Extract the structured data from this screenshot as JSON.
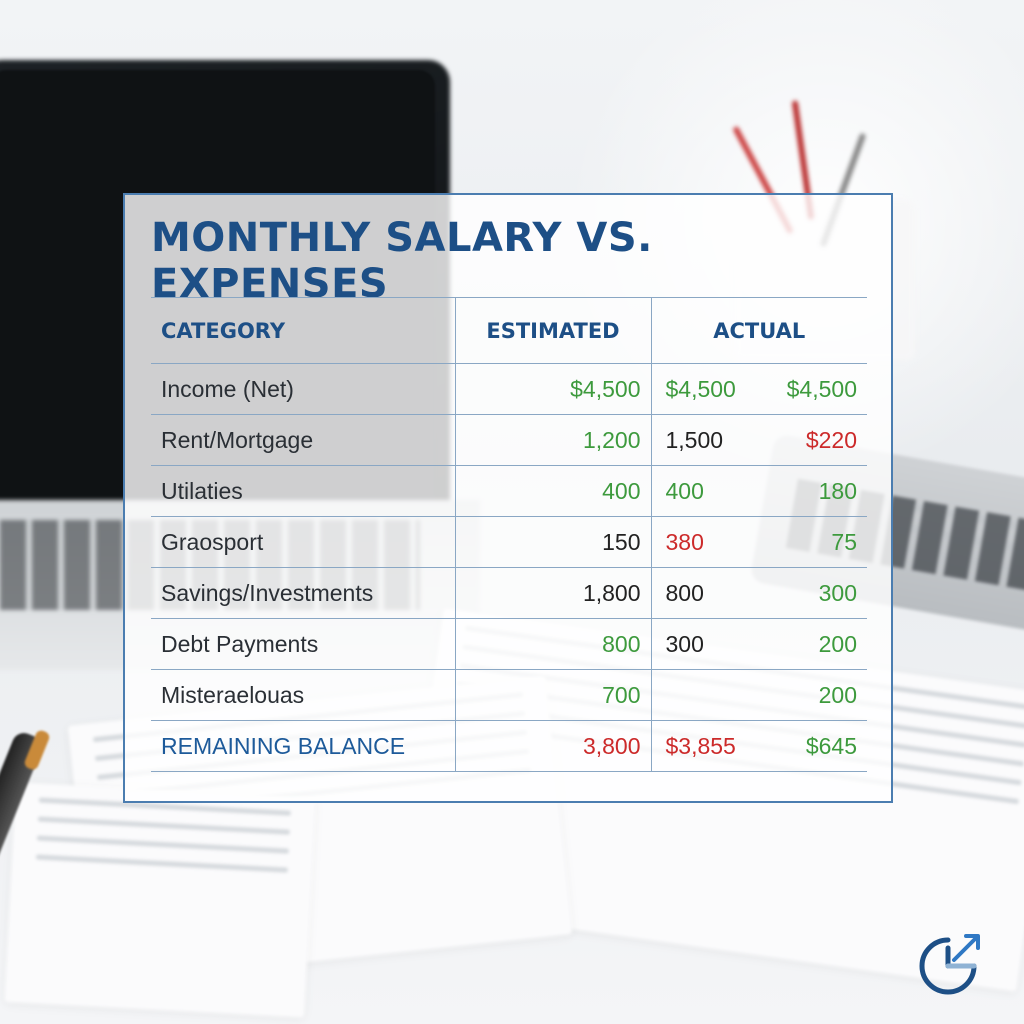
{
  "title": "MONTHLY SALARY VS. EXPENSES",
  "headers": {
    "category": "CATEGORY",
    "estimated": "ESTIMATED",
    "actual": "ACTUAL"
  },
  "rows": [
    {
      "category": "Income (Net)",
      "estimated": "$4,500",
      "actual": "$4,500",
      "extra": "$4,500",
      "colors": {
        "estimated": "green",
        "actual": "green",
        "extra": "green"
      }
    },
    {
      "category": "Rent/Mortgage",
      "estimated": "1,200",
      "actual": "1,500",
      "extra": "$220",
      "colors": {
        "estimated": "green",
        "actual": "dark",
        "extra": "red"
      }
    },
    {
      "category": "Utilaties",
      "estimated": "400",
      "actual": "400",
      "extra": "180",
      "colors": {
        "estimated": "green",
        "actual": "green",
        "extra": "green"
      }
    },
    {
      "category": "Graosport",
      "estimated": "150",
      "actual": "380",
      "extra": "75",
      "colors": {
        "estimated": "dark",
        "actual": "red",
        "extra": "green"
      }
    },
    {
      "category": "Savings/Investments",
      "estimated": "1,800",
      "actual": "800",
      "extra": "300",
      "colors": {
        "estimated": "dark",
        "actual": "dark",
        "extra": "green"
      }
    },
    {
      "category": "Debt Payments",
      "estimated": "800",
      "actual": "300",
      "extra": "200",
      "colors": {
        "estimated": "green",
        "actual": "dark",
        "extra": "green"
      }
    },
    {
      "category": "Misteraelouas",
      "estimated": "700",
      "actual": "",
      "extra": "200",
      "colors": {
        "estimated": "green",
        "actual": "dark",
        "extra": "green"
      }
    },
    {
      "category": "REMAINING BALANCE",
      "estimated": "3,800",
      "actual": "$3,855",
      "extra": "$645",
      "colors": {
        "estimated": "red",
        "actual": "red",
        "extra": "green"
      }
    }
  ],
  "colors": {
    "title": "#1d4f86",
    "border": "#4b7db0",
    "positive": "#3d9a3d",
    "negative": "#cc2a2a",
    "neutral": "#222222"
  },
  "icons": {
    "logo": "growth-chart-logo-icon"
  }
}
